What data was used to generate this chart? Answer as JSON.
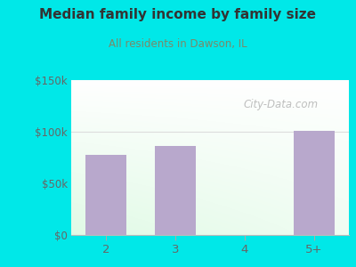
{
  "title": "Median family income by family size",
  "subtitle": "All residents in Dawson, IL",
  "categories": [
    "2",
    "3",
    "4",
    "5+"
  ],
  "values": [
    78000,
    86000,
    0,
    101000
  ],
  "bar_color": "#b8a8cc",
  "bg_color": "#00e8e8",
  "title_color": "#333333",
  "subtitle_color": "#7a8a6a",
  "tick_color": "#666666",
  "ylim": [
    0,
    150000
  ],
  "yticks": [
    0,
    50000,
    100000,
    150000
  ],
  "ytick_labels": [
    "$0",
    "$50k",
    "$100k",
    "$150k"
  ],
  "watermark": "City-Data.com",
  "watermark_color": "#aaaaaa",
  "grid_color": "#dddddd"
}
